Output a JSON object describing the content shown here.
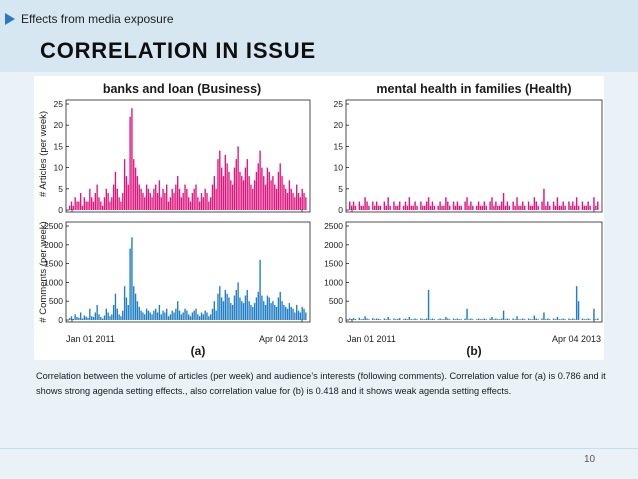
{
  "slide": {
    "breadcrumb": "Effects from media exposure",
    "title": "CORRELATION IN ISSUE",
    "caption": "Correlation between the volume of articles (per week) and audience’s interests (following comments). Correlation value for (a) is 0.786 and it shows strong agenda setting effects., also correlation value for (b) is 0.418 and it shows weak agenda setting effects.",
    "page_number": "10",
    "colors": {
      "header": "#d7e7f2",
      "accent": "#2b78c5",
      "articles": "#e0157e",
      "comments": "#1f7ec4"
    }
  },
  "chart_data": [
    {
      "type": "bar",
      "panel": "(a)",
      "title": "banks and loan (Business)",
      "ylabel": "# Articles (per week)",
      "ylim": [
        0,
        25
      ],
      "yticks": [
        "0",
        "5",
        "10",
        "15",
        "20",
        "25"
      ],
      "xtick_labels": [
        "Jan 01 2011",
        "Apr 04 2013"
      ],
      "values": [
        1,
        2,
        1,
        3,
        2,
        2,
        4,
        1,
        3,
        2,
        2,
        5,
        3,
        2,
        4,
        6,
        3,
        2,
        1,
        3,
        5,
        4,
        2,
        3,
        6,
        9,
        5,
        3,
        2,
        4,
        12,
        8,
        6,
        22,
        24,
        12,
        10,
        8,
        6,
        5,
        4,
        3,
        6,
        5,
        4,
        3,
        5,
        6,
        4,
        7,
        3,
        5,
        4,
        6,
        2,
        3,
        5,
        4,
        6,
        8,
        5,
        3,
        4,
        6,
        5,
        3,
        2,
        4,
        5,
        6,
        3,
        2,
        4,
        3,
        5,
        4,
        2,
        3,
        6,
        8,
        5,
        12,
        14,
        10,
        8,
        13,
        11,
        9,
        7,
        6,
        10,
        12,
        15,
        9,
        8,
        7,
        10,
        12,
        8,
        6,
        5,
        7,
        9,
        11,
        14,
        10,
        8,
        6,
        10,
        9,
        7,
        8,
        6,
        5,
        9,
        11,
        8,
        6,
        5,
        4,
        7,
        5,
        4,
        3,
        6,
        4,
        3,
        5,
        4,
        3
      ]
    },
    {
      "type": "bar",
      "panel": "(b)",
      "title": "mental health in families (Health)",
      "ylabel": "",
      "ylim": [
        0,
        25
      ],
      "yticks": [
        "0",
        "5",
        "10",
        "15",
        "20",
        "25"
      ],
      "xtick_labels": [
        "Jan 01 2011",
        "Apr 04 2013"
      ],
      "values": [
        2,
        1,
        2,
        1,
        0,
        2,
        1,
        1,
        3,
        2,
        1,
        0,
        2,
        1,
        2,
        1,
        1,
        0,
        2,
        1,
        3,
        1,
        0,
        2,
        1,
        1,
        2,
        0,
        1,
        2,
        1,
        3,
        1,
        1,
        2,
        1,
        0,
        2,
        1,
        1,
        2,
        3,
        1,
        2,
        1,
        0,
        1,
        2,
        1,
        1,
        3,
        2,
        1,
        0,
        2,
        1,
        2,
        1,
        1,
        0,
        2,
        3,
        1,
        2,
        1,
        0,
        1,
        2,
        1,
        1,
        2,
        1,
        0,
        2,
        3,
        1,
        2,
        1,
        1,
        2,
        4,
        1,
        2,
        1,
        0,
        2,
        1,
        3,
        1,
        1,
        2,
        1,
        0,
        2,
        1,
        1,
        3,
        2,
        1,
        0,
        2,
        5,
        1,
        2,
        1,
        0,
        2,
        1,
        3,
        1,
        1,
        2,
        1,
        0,
        2,
        1,
        2,
        1,
        3,
        1,
        0,
        2,
        1,
        1,
        2,
        1,
        0,
        3,
        1,
        2
      ]
    },
    {
      "type": "bar",
      "panel": "(a)",
      "title": "",
      "ylabel": "# Comments (per week)",
      "ylim": [
        0,
        2500
      ],
      "yticks": [
        "0",
        "500",
        "1000",
        "1500",
        "2000",
        "2500"
      ],
      "xtick_labels": [
        "Jan 01 2011",
        "Apr 04 2013"
      ],
      "values": [
        50,
        100,
        30,
        150,
        80,
        60,
        200,
        40,
        120,
        90,
        60,
        300,
        100,
        80,
        200,
        400,
        150,
        80,
        40,
        120,
        300,
        200,
        100,
        150,
        400,
        700,
        300,
        150,
        100,
        250,
        900,
        600,
        400,
        1900,
        2200,
        900,
        700,
        500,
        350,
        250,
        200,
        150,
        300,
        250,
        200,
        150,
        250,
        300,
        200,
        400,
        150,
        250,
        200,
        300,
        100,
        150,
        250,
        200,
        300,
        500,
        250,
        150,
        200,
        300,
        250,
        150,
        100,
        200,
        250,
        300,
        150,
        100,
        200,
        150,
        250,
        200,
        100,
        150,
        300,
        500,
        250,
        700,
        900,
        600,
        500,
        800,
        700,
        600,
        450,
        400,
        650,
        800,
        1000,
        600,
        500,
        450,
        650,
        800,
        500,
        400,
        350,
        450,
        600,
        750,
        1600,
        650,
        500,
        400,
        650,
        600,
        450,
        500,
        400,
        350,
        600,
        750,
        500,
        400,
        350,
        300,
        450,
        350,
        300,
        200,
        400,
        250,
        200,
        350,
        300,
        200
      ]
    },
    {
      "type": "bar",
      "panel": "(b)",
      "title": "",
      "ylabel": "",
      "ylim": [
        0,
        2500
      ],
      "yticks": [
        "0",
        "500",
        "1000",
        "1500",
        "2000",
        "2500"
      ],
      "xtick_labels": [
        "Jan 01 2011",
        "Apr 04 2013"
      ],
      "values": [
        40,
        20,
        50,
        30,
        0,
        60,
        20,
        30,
        100,
        40,
        20,
        0,
        50,
        20,
        40,
        30,
        20,
        0,
        40,
        20,
        80,
        20,
        0,
        40,
        20,
        30,
        50,
        0,
        20,
        40,
        20,
        80,
        20,
        20,
        40,
        20,
        0,
        40,
        20,
        20,
        40,
        800,
        20,
        40,
        20,
        0,
        20,
        40,
        20,
        20,
        80,
        40,
        20,
        0,
        40,
        20,
        40,
        20,
        20,
        0,
        40,
        300,
        20,
        40,
        20,
        0,
        20,
        40,
        20,
        20,
        40,
        20,
        0,
        40,
        80,
        20,
        40,
        20,
        20,
        40,
        250,
        20,
        40,
        20,
        0,
        40,
        20,
        100,
        20,
        20,
        40,
        20,
        0,
        40,
        20,
        20,
        120,
        40,
        20,
        0,
        40,
        200,
        20,
        40,
        20,
        0,
        40,
        20,
        80,
        20,
        20,
        40,
        20,
        0,
        40,
        20,
        40,
        20,
        900,
        500,
        0,
        40,
        20,
        20,
        40,
        20,
        0,
        300,
        20,
        40
      ]
    }
  ]
}
